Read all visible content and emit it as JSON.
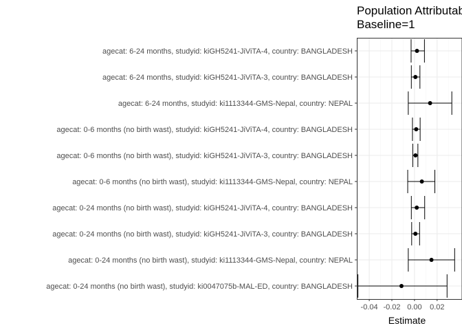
{
  "chart_data": {
    "type": "scatter",
    "subtype": "forest-plot",
    "title": "Population Attributable Difference",
    "subtitle": "Baseline=1",
    "xlabel": "Estimate",
    "ylabel": "",
    "xlim": [
      -0.051,
      0.042
    ],
    "xticks": [
      -0.04,
      -0.02,
      0.0,
      0.02
    ],
    "xtick_labels": [
      "-0.04",
      "-0.02",
      "0.00",
      "0.02"
    ],
    "grid": true,
    "legend": "none",
    "categories": [
      "agecat: 6-24 months, studyid: kiGH5241-JiViTA-4, country: BANGLADESH",
      "agecat: 6-24 months, studyid: kiGH5241-JiViTA-3, country: BANGLADESH",
      "agecat: 6-24 months, studyid: ki1113344-GMS-Nepal, country: NEPAL",
      "agecat: 0-6 months (no birth wast), studyid: kiGH5241-JiViTA-4, country: BANGLADESH",
      "agecat: 0-6 months (no birth wast), studyid: kiGH5241-JiViTA-3, country: BANGLADESH",
      "agecat: 0-6 months (no birth wast), studyid: ki1113344-GMS-Nepal, country: NEPAL",
      "agecat: 0-24 months (no birth wast), studyid: kiGH5241-JiViTA-4, country: BANGLADESH",
      "agecat: 0-24 months (no birth wast), studyid: kiGH5241-JiViTA-3, country: BANGLADESH",
      "agecat: 0-24 months (no birth wast), studyid: ki1113344-GMS-Nepal, country: NEPAL",
      "agecat: 0-24 months (no birth wast), studyid: ki0047075b-MAL-ED, country: BANGLADESH"
    ],
    "estimates": [
      0.0022,
      0.0008,
      0.0138,
      0.0015,
      0.0009,
      0.0065,
      0.002,
      0.0008,
      0.015,
      -0.0115
    ],
    "ci_lower": [
      -0.003,
      -0.0028,
      -0.0055,
      -0.0018,
      -0.0015,
      -0.006,
      -0.0028,
      -0.0025,
      -0.0055,
      -0.05
    ],
    "ci_upper": [
      0.0088,
      0.0048,
      0.033,
      0.005,
      0.003,
      0.018,
      0.009,
      0.0045,
      0.0355,
      0.0288
    ],
    "colors": {
      "point": "#000000",
      "errorbar": "#000000",
      "grid_major": "#ebebeb",
      "grid_minor": "#f5f5f5",
      "panel_border": "#333333"
    }
  }
}
